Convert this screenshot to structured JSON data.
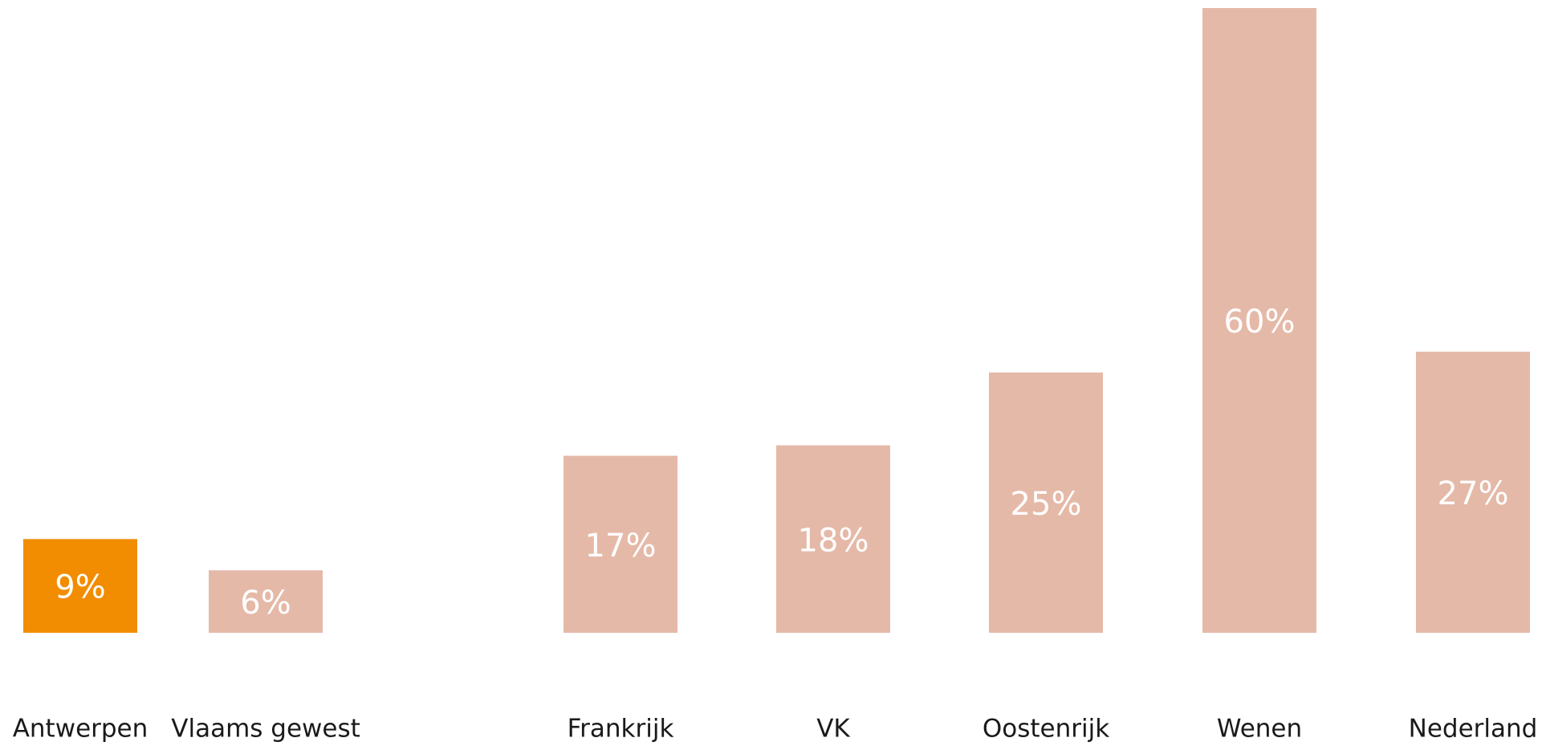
{
  "chart_data": {
    "type": "bar",
    "categories": [
      "Antwerpen",
      "Vlaams gewest",
      "Frankrijk",
      "VK",
      "Oostenrijk",
      "Wenen",
      "Nederland"
    ],
    "values": [
      9,
      6,
      17,
      18,
      25,
      60,
      27
    ],
    "value_labels": [
      "9%",
      "6%",
      "17%",
      "18%",
      "25%",
      "60%",
      "27%"
    ],
    "colors": [
      "#f28c00",
      "#e5b9a8",
      "#e5b9a8",
      "#e5b9a8",
      "#e5b9a8",
      "#e5b9a8",
      "#e5b9a8"
    ],
    "ylim": [
      0,
      60
    ]
  }
}
